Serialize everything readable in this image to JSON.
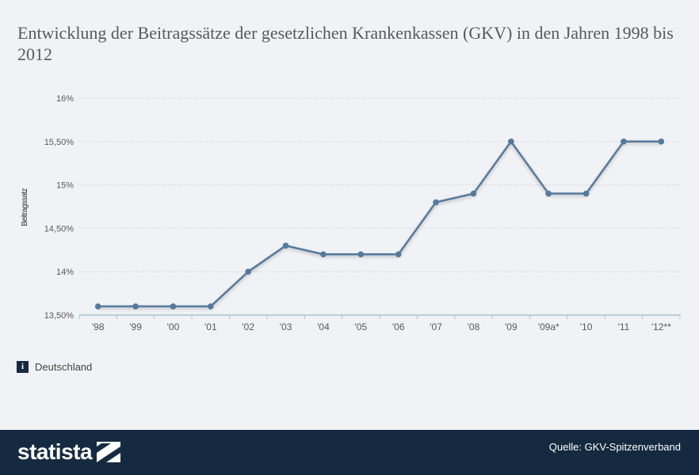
{
  "title": "Entwicklung der Beitragssätze der gesetzlichen Krankenkassen (GKV) in den Jahren 1998 bis 2012",
  "info_icon": "i",
  "info_label": "Deutschland",
  "footer": {
    "brand": "statista",
    "source": "Quelle: GKV-Spitzenverband"
  },
  "colors": {
    "line": "#54799d",
    "grid": "#d2d5da",
    "background": "#f1f2f5",
    "footer": "#152a40"
  },
  "chart_data": {
    "type": "line",
    "title": "Entwicklung der Beitragssätze der gesetzlichen Krankenkassen (GKV) in den Jahren 1998 bis 2012",
    "xlabel": "",
    "ylabel": "Beitragssatz",
    "categories": [
      "'98",
      "'99",
      "'00",
      "'01",
      "'02",
      "'03",
      "'04",
      "'05",
      "'06",
      "'07",
      "'08",
      "'09",
      "'09a*",
      "'10",
      "'11",
      "'12**"
    ],
    "series": [
      {
        "name": "Deutschland",
        "values": [
          13.6,
          13.6,
          13.6,
          13.6,
          14.0,
          14.3,
          14.2,
          14.2,
          14.2,
          14.8,
          14.9,
          15.5,
          14.9,
          14.9,
          15.5,
          15.5
        ]
      }
    ],
    "ylim": [
      13.5,
      16
    ],
    "yticks": [
      {
        "value": 13.5,
        "label": "13,50%"
      },
      {
        "value": 14,
        "label": "14%"
      },
      {
        "value": 14.5,
        "label": "14,50%"
      },
      {
        "value": 15,
        "label": "15%"
      },
      {
        "value": 15.5,
        "label": "15,50%"
      },
      {
        "value": 16,
        "label": "16%"
      }
    ],
    "grid": true,
    "legend": "bottom-left"
  }
}
